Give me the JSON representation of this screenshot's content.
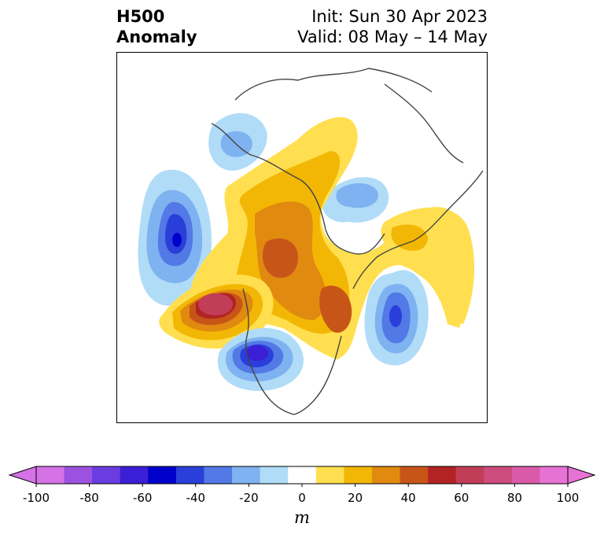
{
  "header": {
    "title_line1": "H500",
    "title_line2": "Anomaly",
    "init": "Init: Sun 30 Apr 2023",
    "valid": "Valid: 08 May – 14 May"
  },
  "colorbar": {
    "unit": "m",
    "ticks": [
      "-100",
      "-80",
      "-60",
      "-40",
      "-20",
      "0",
      "20",
      "40",
      "60",
      "80",
      "100"
    ],
    "range": [
      -100,
      100
    ],
    "step": 10,
    "colors": [
      "#d472e6",
      "#9c52e0",
      "#6a3de0",
      "#3b1fd6",
      "#0000cc",
      "#2a3fd9",
      "#5279e6",
      "#7fb2f0",
      "#b0dcf7",
      "#ffffff",
      "#ffdf4f",
      "#f2b705",
      "#e08a10",
      "#c85518",
      "#b22424",
      "#c23d58",
      "#cc4c7e",
      "#d95aa8",
      "#e672d4"
    ]
  },
  "anomalies": [
    {
      "name": "west-pacific-low",
      "value": -60
    },
    {
      "name": "gulf-of-alaska-high",
      "value": 70
    },
    {
      "name": "western-us-low",
      "value": -50
    },
    {
      "name": "north-atlantic-low",
      "value": -50
    },
    {
      "name": "arctic-high",
      "value": 40
    },
    {
      "name": "eurasia-high",
      "value": 20
    }
  ]
}
